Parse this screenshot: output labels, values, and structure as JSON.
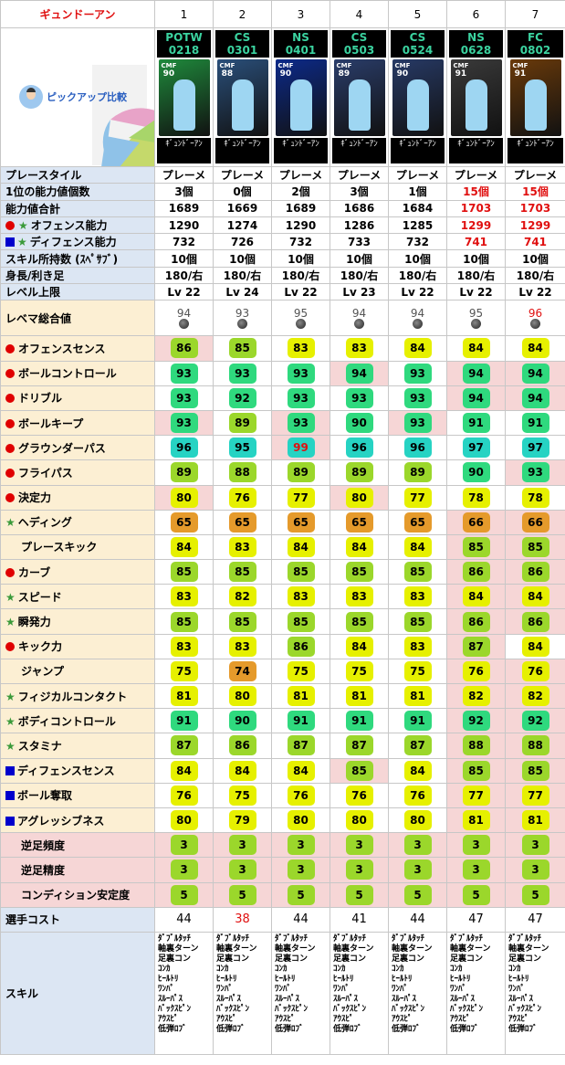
{
  "header": {
    "title": "ギュンドーアン",
    "col_numbers": [
      "1",
      "2",
      "3",
      "4",
      "5",
      "6",
      "7"
    ],
    "pickup_label": "ピックアップ比較"
  },
  "cards": [
    {
      "code": "POTW\n0218",
      "position": "CMF",
      "rating": "90",
      "name": "ｷﾞｭﾝﾄﾞｰｱﾝ",
      "bg": "#1f8a3c"
    },
    {
      "code": "CS\n0301",
      "position": "CMF",
      "rating": "88",
      "name": "ｷﾞｭﾝﾄﾞｰｱﾝ",
      "bg": "#2a4f7a"
    },
    {
      "code": "NS\n0401",
      "position": "CMF",
      "rating": "90",
      "name": "ｷﾞｭﾝﾄﾞｰｱﾝ",
      "bg": "#0c2a8a"
    },
    {
      "code": "CS\n0503",
      "position": "CMF",
      "rating": "89",
      "name": "ｷﾞｭﾝﾄﾞｰｱﾝ",
      "bg": "#2a3d6a"
    },
    {
      "code": "CS\n0524",
      "position": "CMF",
      "rating": "90",
      "name": "ｷﾞｭﾝﾄﾞｰｱﾝ",
      "bg": "#273a66"
    },
    {
      "code": "NS\n0628",
      "position": "CMF",
      "rating": "91",
      "name": "ｷﾞｭﾝﾄﾞｰｱﾝ",
      "bg": "#3a3a3a"
    },
    {
      "code": "FC\n0802",
      "position": "CMF",
      "rating": "91",
      "name": "ｷﾞｭﾝﾄﾞｰｱﾝ",
      "bg": "#6a3a0a"
    }
  ],
  "info_rows": [
    {
      "icon": "",
      "label": "プレースタイル",
      "values": [
        "プレーメ",
        "プレーメ",
        "プレーメ",
        "プレーメ",
        "プレーメ",
        "プレーメ",
        "プレーメ"
      ],
      "red": []
    },
    {
      "icon": "",
      "label": "1位の能力値個数",
      "values": [
        "3個",
        "0個",
        "2個",
        "3個",
        "1個",
        "15個",
        "15個"
      ],
      "red": [
        5,
        6
      ]
    },
    {
      "icon": "",
      "label": "能力値合計",
      "values": [
        "1689",
        "1669",
        "1689",
        "1686",
        "1684",
        "1703",
        "1703"
      ],
      "red": [
        5,
        6
      ]
    },
    {
      "icon": "dot-star",
      "label": "オフェンス能力",
      "values": [
        "1290",
        "1274",
        "1290",
        "1286",
        "1285",
        "1299",
        "1299"
      ],
      "red": [
        5,
        6
      ]
    },
    {
      "icon": "sq-star",
      "label": "ディフェンス能力",
      "values": [
        "732",
        "726",
        "732",
        "733",
        "732",
        "741",
        "741"
      ],
      "red": [
        5,
        6
      ]
    },
    {
      "icon": "",
      "label": "スキル所持数 (ｽﾍﾟｻﾌﾞ)",
      "values": [
        "10個",
        "10個",
        "10個",
        "10個",
        "10個",
        "10個",
        "10個"
      ],
      "red": []
    },
    {
      "icon": "",
      "label": "身長/利き足",
      "values": [
        "180/右",
        "180/右",
        "180/右",
        "180/右",
        "180/右",
        "180/右",
        "180/右"
      ],
      "red": []
    },
    {
      "icon": "",
      "label": "レベル上限",
      "values": [
        "Lv 22",
        "Lv 24",
        "Lv 22",
        "Lv 23",
        "Lv 22",
        "Lv 22",
        "Lv 22"
      ],
      "red": []
    }
  ],
  "levema": {
    "label": "レベマ総合値",
    "values": [
      "94",
      "93",
      "95",
      "94",
      "94",
      "95",
      "96"
    ],
    "red": [
      6
    ]
  },
  "stats": [
    {
      "icon": "dot",
      "label": "オフェンスセンス",
      "values": [
        86,
        85,
        83,
        83,
        84,
        84,
        84
      ],
      "hl": [
        0
      ]
    },
    {
      "icon": "dot",
      "label": "ボールコントロール",
      "values": [
        93,
        93,
        93,
        94,
        93,
        94,
        94
      ],
      "hl": [
        3,
        5,
        6
      ]
    },
    {
      "icon": "dot",
      "label": "ドリブル",
      "values": [
        93,
        92,
        93,
        93,
        93,
        94,
        94
      ],
      "hl": [
        5,
        6
      ]
    },
    {
      "icon": "dot",
      "label": "ボールキープ",
      "values": [
        93,
        89,
        93,
        90,
        93,
        91,
        91
      ],
      "hl": [
        0,
        2,
        4
      ]
    },
    {
      "icon": "dot",
      "label": "グラウンダーパス",
      "values": [
        96,
        95,
        99,
        96,
        96,
        97,
        97
      ],
      "hl": [
        2
      ],
      "red": [
        2
      ]
    },
    {
      "icon": "dot",
      "label": "フライパス",
      "values": [
        89,
        88,
        89,
        89,
        89,
        90,
        93
      ],
      "hl": [
        6
      ]
    },
    {
      "icon": "dot",
      "label": "決定力",
      "values": [
        80,
        76,
        77,
        80,
        77,
        78,
        78
      ],
      "hl": [
        0,
        3
      ]
    },
    {
      "icon": "star",
      "label": "ヘディング",
      "values": [
        65,
        65,
        65,
        65,
        65,
        66,
        66
      ],
      "hl": [
        5,
        6
      ]
    },
    {
      "icon": "",
      "label": "プレースキック",
      "values": [
        84,
        83,
        84,
        84,
        84,
        85,
        85
      ],
      "hl": [
        5,
        6
      ]
    },
    {
      "icon": "dot",
      "label": "カーブ",
      "values": [
        85,
        85,
        85,
        85,
        85,
        86,
        86
      ],
      "hl": [
        5,
        6
      ]
    },
    {
      "icon": "star",
      "label": "スピード",
      "values": [
        83,
        82,
        83,
        83,
        83,
        84,
        84
      ],
      "hl": [
        5,
        6
      ]
    },
    {
      "icon": "star",
      "label": "瞬発力",
      "values": [
        85,
        85,
        85,
        85,
        85,
        86,
        86
      ],
      "hl": [
        5,
        6
      ]
    },
    {
      "icon": "dot",
      "label": "キック力",
      "values": [
        83,
        83,
        86,
        84,
        83,
        87,
        84
      ],
      "hl": [
        5
      ]
    },
    {
      "icon": "",
      "label": "ジャンプ",
      "values": [
        75,
        74,
        75,
        75,
        75,
        76,
        76
      ],
      "hl": [
        5,
        6
      ]
    },
    {
      "icon": "star",
      "label": "フィジカルコンタクト",
      "values": [
        81,
        80,
        81,
        81,
        81,
        82,
        82
      ],
      "hl": [
        5,
        6
      ]
    },
    {
      "icon": "star",
      "label": "ボディコントロール",
      "values": [
        91,
        90,
        91,
        91,
        91,
        92,
        92
      ],
      "hl": [
        5,
        6
      ]
    },
    {
      "icon": "star",
      "label": "スタミナ",
      "values": [
        87,
        86,
        87,
        87,
        87,
        88,
        88
      ],
      "hl": [
        5,
        6
      ]
    },
    {
      "icon": "sq",
      "label": "ディフェンスセンス",
      "values": [
        84,
        84,
        84,
        85,
        84,
        85,
        85
      ],
      "hl": [
        3,
        5,
        6
      ]
    },
    {
      "icon": "sq",
      "label": "ボール奪取",
      "values": [
        76,
        75,
        76,
        76,
        76,
        77,
        77
      ],
      "hl": [
        5,
        6
      ]
    },
    {
      "icon": "sq",
      "label": "アグレッシブネス",
      "values": [
        80,
        79,
        80,
        80,
        80,
        81,
        81
      ],
      "hl": [
        5,
        6
      ]
    },
    {
      "icon": "",
      "label": "逆足頻度",
      "values": [
        3,
        3,
        3,
        3,
        3,
        3,
        3
      ],
      "hl": [
        0,
        1,
        2,
        3,
        4,
        5,
        6
      ],
      "section": "pink"
    },
    {
      "icon": "",
      "label": "逆足精度",
      "values": [
        3,
        3,
        3,
        3,
        3,
        3,
        3
      ],
      "hl": [
        0,
        1,
        2,
        3,
        4,
        5,
        6
      ],
      "section": "pink"
    },
    {
      "icon": "",
      "label": "コンディション安定度",
      "values": [
        5,
        5,
        5,
        5,
        5,
        5,
        5
      ],
      "hl": [
        0,
        1,
        2,
        3,
        4,
        5,
        6
      ],
      "section": "pink"
    }
  ],
  "cost": {
    "label": "選手コスト",
    "values": [
      "44",
      "38",
      "44",
      "41",
      "44",
      "47",
      "47"
    ],
    "red": [
      1
    ]
  },
  "skills": {
    "label": "スキル",
    "list": [
      "ﾀﾞﾌﾞﾙﾀｯﾁ",
      "軸裏ターン",
      "足裏コン",
      "ｺﾝｶ",
      "ﾋｰﾙﾄﾘ",
      "ﾜﾝﾊﾟ",
      "ｽﾙｰﾊﾟｽ",
      "ﾊﾞｯｸｽﾋﾟﾝ",
      "ｱｳｽﾋﾟ",
      "低弾ﾛﾌﾞ"
    ]
  },
  "colors": {
    "green": "#2fd97e",
    "teal": "#26d3c3",
    "yellowgreen": "#9bd72b",
    "yellow": "#e6f000",
    "orange": "#e59a2b"
  }
}
